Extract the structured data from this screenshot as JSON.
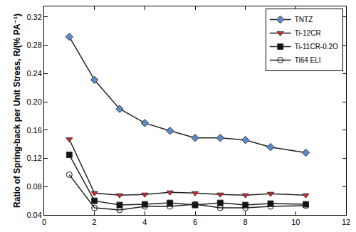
{
  "chart_data": {
    "type": "line",
    "y_label": "Ratio of Spring-back per Unit Stress, R/(% PA⁻¹)",
    "series": [
      {
        "name": "TNTZ",
        "color": "#5b8cc8",
        "marker": "diamond",
        "x": [
          1,
          2,
          3,
          4,
          5,
          6,
          7,
          8,
          9,
          10.4
        ],
        "values": [
          0.292,
          0.231,
          0.19,
          0.17,
          0.159,
          0.149,
          0.149,
          0.146,
          0.136,
          0.128
        ]
      },
      {
        "name": "Ti-12CR",
        "color": "#d9262b",
        "marker": "triangle-down",
        "x": [
          1,
          2,
          3,
          4,
          5,
          6,
          7,
          8,
          9,
          10.4
        ],
        "values": [
          0.147,
          0.071,
          0.068,
          0.069,
          0.072,
          0.071,
          0.069,
          0.068,
          0.07,
          0.068
        ]
      },
      {
        "name": "Ti-11CR-0.2O",
        "color": "#111111",
        "marker": "square",
        "x": [
          1,
          2,
          3,
          4,
          5,
          6,
          7,
          8,
          9,
          10.4
        ],
        "values": [
          0.125,
          0.06,
          0.054,
          0.055,
          0.057,
          0.054,
          0.057,
          0.054,
          0.056,
          0.055
        ]
      },
      {
        "name": "Ti64 ELI",
        "color": "#111111",
        "marker": "circle-open",
        "x": [
          1,
          2,
          3,
          4,
          5,
          6,
          7,
          8,
          9,
          10.4
        ],
        "values": [
          0.097,
          0.05,
          0.047,
          0.052,
          0.052,
          0.055,
          0.05,
          0.05,
          0.052,
          0.053
        ]
      }
    ],
    "xlim": [
      0,
      12
    ],
    "xticks": [
      0,
      2,
      4,
      6,
      8,
      10,
      12
    ],
    "ylim": [
      0.04,
      0.335
    ],
    "yticks": [
      0.04,
      0.08,
      0.12,
      0.16,
      {
        "value": 0.2,
        "label": "0.20"
      },
      0.24,
      0.28,
      0.32
    ],
    "grid": false,
    "legend": "top-right"
  }
}
